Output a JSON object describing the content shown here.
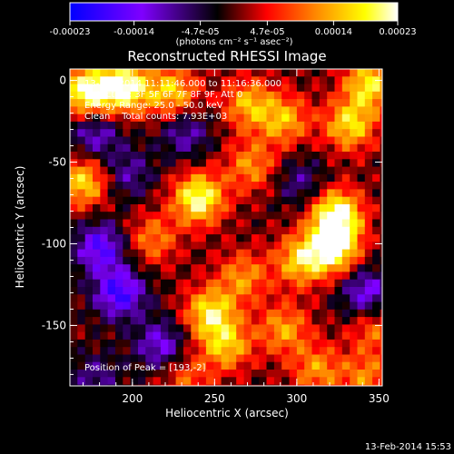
{
  "chart_data": {
    "type": "heatmap",
    "title": "Reconstructed RHESSI Image",
    "xlabel": "Heliocentric X (arcsec)",
    "ylabel": "Heliocentric Y (arcsec)",
    "xlim": [
      162,
      352
    ],
    "ylim": [
      -187,
      7
    ],
    "x_ticks": [
      200,
      250,
      300,
      350
    ],
    "y_ticks": [
      0,
      -50,
      -100,
      -150
    ],
    "x_tick_labels": [
      "200",
      "250",
      "300",
      "350"
    ],
    "y_tick_labels": [
      "0",
      "-50",
      "-100",
      "-150"
    ],
    "colorbar": {
      "range": [
        -0.00023,
        0.00023
      ],
      "ticks": [
        -0.00023,
        -0.00014,
        -4.7e-05,
        4.7e-05,
        0.00014,
        0.00023
      ],
      "tick_labels": [
        "-0.00023",
        "-0.00014",
        "-4.7e-05",
        "4.7e-05",
        "0.00014",
        "0.00023"
      ],
      "unit_label": "(photons cm⁻² s⁻¹ asec⁻²)",
      "colors": [
        "#0000ff",
        "#7f00ff",
        "#000000",
        "#ff0000",
        "#ff8800",
        "#ffff00",
        "#ffffff"
      ]
    },
    "annotations": [
      "13-Feb-2014 11:11:46.000 to 11:16:36.000",
      "Detectors: 3F 5F 6F 7F 8F 9F, Att 0",
      "Energy Range: 25.0 - 50.0 keV",
      "Clean    Total counts: 7.93E+03",
      "Position of Peak = [193,-2]"
    ],
    "peak": [
      193,
      -2
    ],
    "sources": [
      {
        "x": 170,
        "y": -5,
        "value": 0.00023
      },
      {
        "x": 193,
        "y": -2,
        "value": 0.00023
      },
      {
        "x": 222,
        "y": -5,
        "value": 0.00016
      },
      {
        "x": 268,
        "y": -12,
        "value": 0.00014
      },
      {
        "x": 290,
        "y": -22,
        "value": 0.00014
      },
      {
        "x": 330,
        "y": -25,
        "value": 0.00017
      },
      {
        "x": 342,
        "y": 0,
        "value": 0.00018
      },
      {
        "x": 270,
        "y": -50,
        "value": 0.00012
      },
      {
        "x": 238,
        "y": -70,
        "value": 0.00022
      },
      {
        "x": 322,
        "y": -80,
        "value": 0.00023
      },
      {
        "x": 320,
        "y": -100,
        "value": 0.00023
      },
      {
        "x": 300,
        "y": -108,
        "value": 0.00016
      },
      {
        "x": 168,
        "y": -60,
        "value": 0.00017
      },
      {
        "x": 210,
        "y": -95,
        "value": 0.00011
      },
      {
        "x": 265,
        "y": -118,
        "value": 0.00012
      },
      {
        "x": 245,
        "y": -140,
        "value": 0.00018
      },
      {
        "x": 255,
        "y": -160,
        "value": 0.00015
      },
      {
        "x": 290,
        "y": -150,
        "value": 0.00013
      },
      {
        "x": 310,
        "y": -175,
        "value": 0.00012
      },
      {
        "x": 340,
        "y": -180,
        "value": 0.00011
      },
      {
        "x": 345,
        "y": -150,
        "value": 0.0001
      },
      {
        "x": 230,
        "y": -180,
        "value": 9e-05
      },
      {
        "x": 175,
        "y": -180,
        "value": -8e-05
      },
      {
        "x": 178,
        "y": -100,
        "value": -0.00016
      },
      {
        "x": 190,
        "y": -128,
        "value": -0.00018
      },
      {
        "x": 175,
        "y": -30,
        "value": -0.00012
      },
      {
        "x": 230,
        "y": -30,
        "value": -0.0001
      },
      {
        "x": 215,
        "y": -160,
        "value": -0.00013
      },
      {
        "x": 340,
        "y": -128,
        "value": -0.00014
      },
      {
        "x": 300,
        "y": -60,
        "value": -8e-05
      },
      {
        "x": 195,
        "y": -55,
        "value": -9e-05
      }
    ],
    "grid": false
  },
  "footer": {
    "timestamp": "13-Feb-2014 15:53"
  }
}
